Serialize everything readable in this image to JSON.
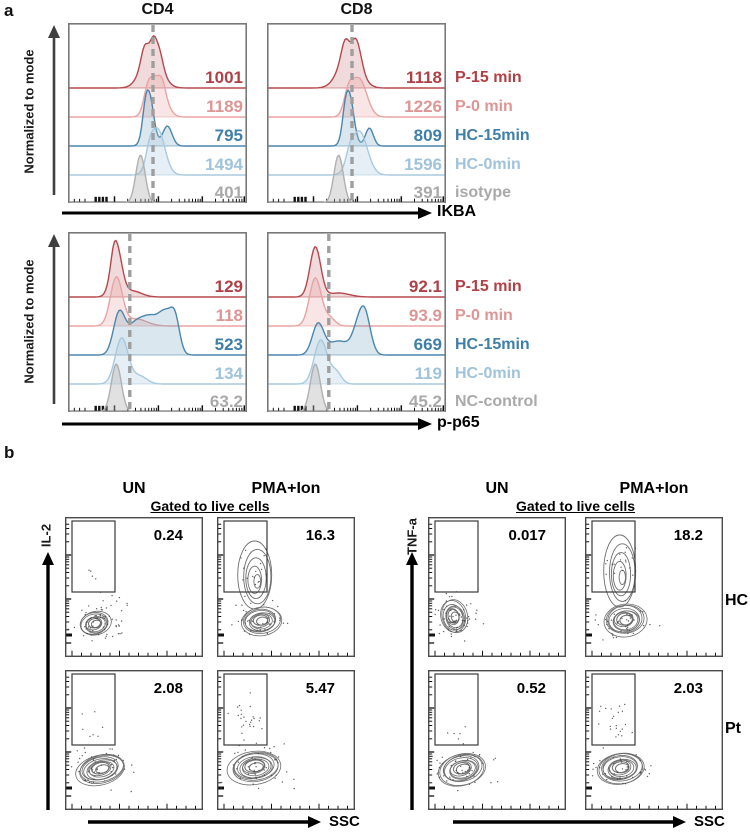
{
  "figure": {
    "panel_a_label": "a",
    "panel_b_label": "b",
    "hist_ylabel": "Normalized to mode"
  },
  "colors": {
    "series": [
      "#b5484d",
      "#e8a3a3",
      "#4a86ad",
      "#a9c9de",
      "#b0b0b0"
    ],
    "series_text": [
      "#b04045",
      "#e09595",
      "#3f7fa8",
      "#9fc3da",
      "#a9a9a9"
    ],
    "series_fill_opacity": [
      0.2,
      0.28,
      0.2,
      0.3,
      0.38
    ],
    "dashed_line": "#9e9e9e",
    "axis_arrow_dark": "#3f3f3f",
    "axis_arrow_black": "#000000"
  },
  "chart_data": [
    {
      "type": "area",
      "subtype": "ridgeline_histogram",
      "xlabel": "IKBA",
      "ylabel": "Normalized to mode",
      "x_scale": "log",
      "dash_x": 0.475,
      "legend": [
        "P-15 min",
        "P-0 min",
        "HC-15min",
        "HC-0min",
        "isotype"
      ],
      "panels": [
        {
          "title": "CD4",
          "series": [
            {
              "name": "P-15 min",
              "mfi": "1001",
              "curve": [
                [
                  0.465,
                  0.052,
                  40
                ],
                [
                  0.425,
                  0.018,
                  12
                ],
                [
                  0.478,
                  0.015,
                  10
                ],
                [
                  0.51,
                  0.02,
                  12
                ]
              ]
            },
            {
              "name": "P-0 min",
              "mfi": "1189",
              "curve": [
                [
                  0.5,
                  0.042,
                  40
                ],
                [
                  0.445,
                  0.022,
                  18
                ],
                [
                  0.53,
                  0.015,
                  6
                ]
              ]
            },
            {
              "name": "HC-15min",
              "mfi": "795",
              "curve": [
                [
                  0.452,
                  0.026,
                  52
                ],
                [
                  0.43,
                  0.015,
                  10
                ],
                [
                  0.555,
                  0.026,
                  20
                ]
              ]
            },
            {
              "name": "HC-0min",
              "mfi": "1494",
              "curve": [
                [
                  0.5,
                  0.04,
                  46
                ],
                [
                  0.455,
                  0.02,
                  12
                ]
              ]
            },
            {
              "name": "isotype",
              "mfi": "401",
              "curve": [
                [
                  0.405,
                  0.026,
                  48
                ]
              ]
            }
          ]
        },
        {
          "title": "CD8",
          "series": [
            {
              "name": "P-15 min",
              "mfi": "1118",
              "curve": [
                [
                  0.46,
                  0.055,
                  38
                ],
                [
                  0.435,
                  0.02,
                  14
                ],
                [
                  0.495,
                  0.018,
                  14
                ],
                [
                  0.52,
                  0.02,
                  10
                ]
              ]
            },
            {
              "name": "P-0 min",
              "mfi": "1226",
              "curve": [
                [
                  0.515,
                  0.042,
                  38
                ],
                [
                  0.455,
                  0.025,
                  20
                ]
              ]
            },
            {
              "name": "HC-15min",
              "mfi": "809",
              "curve": [
                [
                  0.458,
                  0.026,
                  52
                ],
                [
                  0.435,
                  0.015,
                  10
                ],
                [
                  0.572,
                  0.022,
                  18
                ]
              ]
            },
            {
              "name": "HC-0min",
              "mfi": "1596",
              "curve": [
                [
                  0.515,
                  0.045,
                  44
                ],
                [
                  0.46,
                  0.02,
                  10
                ]
              ]
            },
            {
              "name": "isotype",
              "mfi": "391",
              "curve": [
                [
                  0.4,
                  0.026,
                  48
                ]
              ]
            }
          ]
        }
      ]
    },
    {
      "type": "area",
      "subtype": "ridgeline_histogram",
      "xlabel": "p-p65",
      "ylabel": "Normalized to mode",
      "x_scale": "log",
      "dash_x": 0.345,
      "legend": [
        "P-15 min",
        "P-0 min",
        "HC-15min",
        "HC-0min",
        "NC-control"
      ],
      "panels": [
        {
          "title": "",
          "series": [
            {
              "name": "P-15 min",
              "mfi": "129",
              "curve": [
                [
                  0.27,
                  0.03,
                  50
                ],
                [
                  0.255,
                  0.015,
                  8
                ],
                [
                  0.36,
                  0.05,
                  6
                ]
              ]
            },
            {
              "name": "P-0 min",
              "mfi": "118",
              "curve": [
                [
                  0.27,
                  0.033,
                  48
                ],
                [
                  0.38,
                  0.06,
                  7
                ]
              ]
            },
            {
              "name": "HC-15min",
              "mfi": "523",
              "curve": [
                [
                  0.285,
                  0.032,
                  40
                ],
                [
                  0.37,
                  0.045,
                  26
                ],
                [
                  0.46,
                  0.05,
                  34
                ],
                [
                  0.55,
                  0.04,
                  36
                ],
                [
                  0.6,
                  0.025,
                  26
                ]
              ]
            },
            {
              "name": "HC-0min",
              "mfi": "134",
              "curve": [
                [
                  0.3,
                  0.036,
                  46
                ],
                [
                  0.4,
                  0.04,
                  8
                ]
              ]
            },
            {
              "name": "NC-control",
              "mfi": "63.2",
              "curve": [
                [
                  0.27,
                  0.028,
                  48
                ]
              ]
            }
          ]
        },
        {
          "title": "",
          "series": [
            {
              "name": "P-15 min",
              "mfi": "92.1",
              "curve": [
                [
                  0.27,
                  0.03,
                  50
                ],
                [
                  0.4,
                  0.06,
                  4
                ]
              ]
            },
            {
              "name": "P-0 min",
              "mfi": "93.9",
              "curve": [
                [
                  0.27,
                  0.033,
                  48
                ],
                [
                  0.35,
                  0.03,
                  8
                ]
              ]
            },
            {
              "name": "HC-15min",
              "mfi": "669",
              "curve": [
                [
                  0.285,
                  0.032,
                  30
                ],
                [
                  0.4,
                  0.06,
                  14
                ],
                [
                  0.5,
                  0.03,
                  16
                ],
                [
                  0.545,
                  0.032,
                  42
                ]
              ]
            },
            {
              "name": "HC-0min",
              "mfi": "119",
              "curve": [
                [
                  0.3,
                  0.036,
                  44
                ],
                [
                  0.385,
                  0.03,
                  12
                ]
              ]
            },
            {
              "name": "NC-control",
              "mfi": "45.2",
              "curve": [
                [
                  0.27,
                  0.028,
                  48
                ]
              ]
            }
          ]
        }
      ]
    },
    {
      "type": "scatter",
      "subtype": "contour",
      "ylabel": "IL-2",
      "xlabel": "SSC",
      "col_headers": [
        "UN",
        "PMA+Ion"
      ],
      "gate_note": "Gated to live cells",
      "rows": [
        {
          "cells": [
            {
              "condition": "UN",
              "gate_pct": "0.24"
            },
            {
              "condition": "PMA+Ion",
              "gate_pct": "16.3"
            }
          ]
        },
        {
          "cells": [
            {
              "condition": "UN",
              "gate_pct": "2.08"
            },
            {
              "condition": "PMA+Ion",
              "gate_pct": "5.47"
            }
          ]
        }
      ]
    },
    {
      "type": "scatter",
      "subtype": "contour",
      "ylabel": "TNF-a",
      "xlabel": "SSC",
      "col_headers": [
        "UN",
        "PMA+Ion"
      ],
      "gate_note": "Gated to live cells",
      "rows": [
        {
          "row_label": "HC",
          "cells": [
            {
              "condition": "UN",
              "gate_pct": "0.017"
            },
            {
              "condition": "PMA+Ion",
              "gate_pct": "18.2"
            }
          ]
        },
        {
          "row_label": "Pt",
          "cells": [
            {
              "condition": "UN",
              "gate_pct": "0.52"
            },
            {
              "condition": "PMA+Ion",
              "gate_pct": "2.03"
            }
          ]
        }
      ]
    }
  ]
}
